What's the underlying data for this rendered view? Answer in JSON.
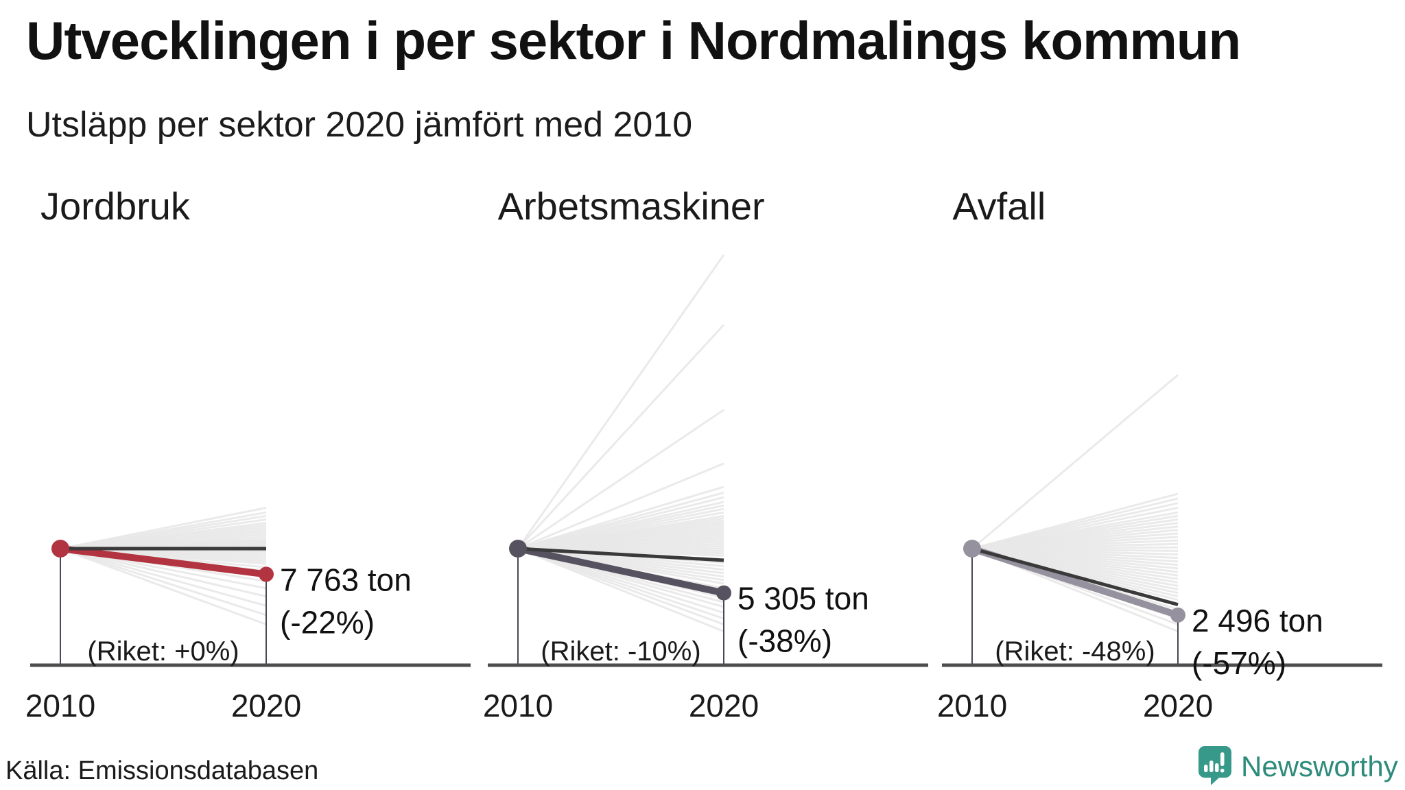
{
  "header": {
    "title": "Utvecklingen i per sektor i Nordmalings kommun",
    "subtitle": "Utsläpp per sektor 2020 jämfört med 2010"
  },
  "footer": {
    "source": "Källa: Emissionsdatabasen",
    "brand": "Newsworthy"
  },
  "colors": {
    "text": "#1a1a1a",
    "accent_red": "#b13440",
    "slate": "#57525f",
    "gray_purple": "#96919e",
    "riket_line": "#3a3a3a",
    "baseline": "#4d4d4d",
    "guide": "#4a4754",
    "fan": "#e8e8e8",
    "brand_teal": "#37998a",
    "brand_text": "#2e8b7b"
  },
  "chart_data": [
    {
      "type": "slope",
      "title": "Jordbruk",
      "x": [
        "2010",
        "2020"
      ],
      "municipality_index": {
        "y2010": 100,
        "y2020": 78
      },
      "value_2020_label": "7 763 ton",
      "change_label": "(-22%)",
      "change_pct": -22,
      "riket_label": "(Riket: +0%)",
      "riket_change_pct": 0,
      "line_color": "#b13440",
      "background_changes_pct": [
        35,
        31,
        28,
        25,
        22,
        20,
        18,
        16,
        14,
        12,
        10,
        8,
        7,
        6,
        5,
        4,
        3,
        2,
        1,
        0,
        -1,
        -2,
        -3,
        -5,
        -7,
        -9,
        -11,
        -13,
        -16,
        -19,
        -23,
        -28,
        -34,
        -41,
        -49,
        -57,
        -65
      ]
    },
    {
      "type": "slope",
      "title": "Arbetsmaskiner",
      "x": [
        "2010",
        "2020"
      ],
      "municipality_index": {
        "y2010": 100,
        "y2020": 62
      },
      "value_2020_label": "5 305 ton",
      "change_label": "(-38%)",
      "change_pct": -38,
      "riket_label": "(Riket: -10%)",
      "riket_change_pct": -10,
      "line_color": "#57525f",
      "background_changes_pct": [
        252,
        192,
        119,
        73,
        53,
        48,
        44,
        40,
        37,
        34,
        31,
        28,
        26,
        24,
        22,
        20,
        18,
        16,
        14,
        12,
        10,
        8,
        6,
        4,
        2,
        0,
        -2,
        -4,
        -6,
        -9,
        -12,
        -15,
        -18,
        -21,
        -24,
        -27,
        -30,
        -34,
        -38,
        -42,
        -46,
        -50,
        -55,
        -60,
        -65,
        -71
      ]
    },
    {
      "type": "slope",
      "title": "Avfall",
      "x": [
        "2010",
        "2020"
      ],
      "municipality_index": {
        "y2010": 100,
        "y2020": 43
      },
      "value_2020_label": "2 496 ton",
      "change_label": "(-57%)",
      "change_pct": -57,
      "riket_label": "(Riket: -48%)",
      "riket_change_pct": -48,
      "line_color": "#96919e",
      "background_changes_pct": [
        149,
        47,
        43,
        39,
        35,
        31,
        28,
        25,
        22,
        19,
        16,
        13,
        10,
        7,
        4,
        1,
        -2,
        -5,
        -8,
        -11,
        -14,
        -17,
        -20,
        -23,
        -26,
        -29,
        -32,
        -35,
        -38,
        -41,
        -44,
        -48,
        -52,
        -56,
        -60,
        -65,
        -71
      ]
    }
  ]
}
